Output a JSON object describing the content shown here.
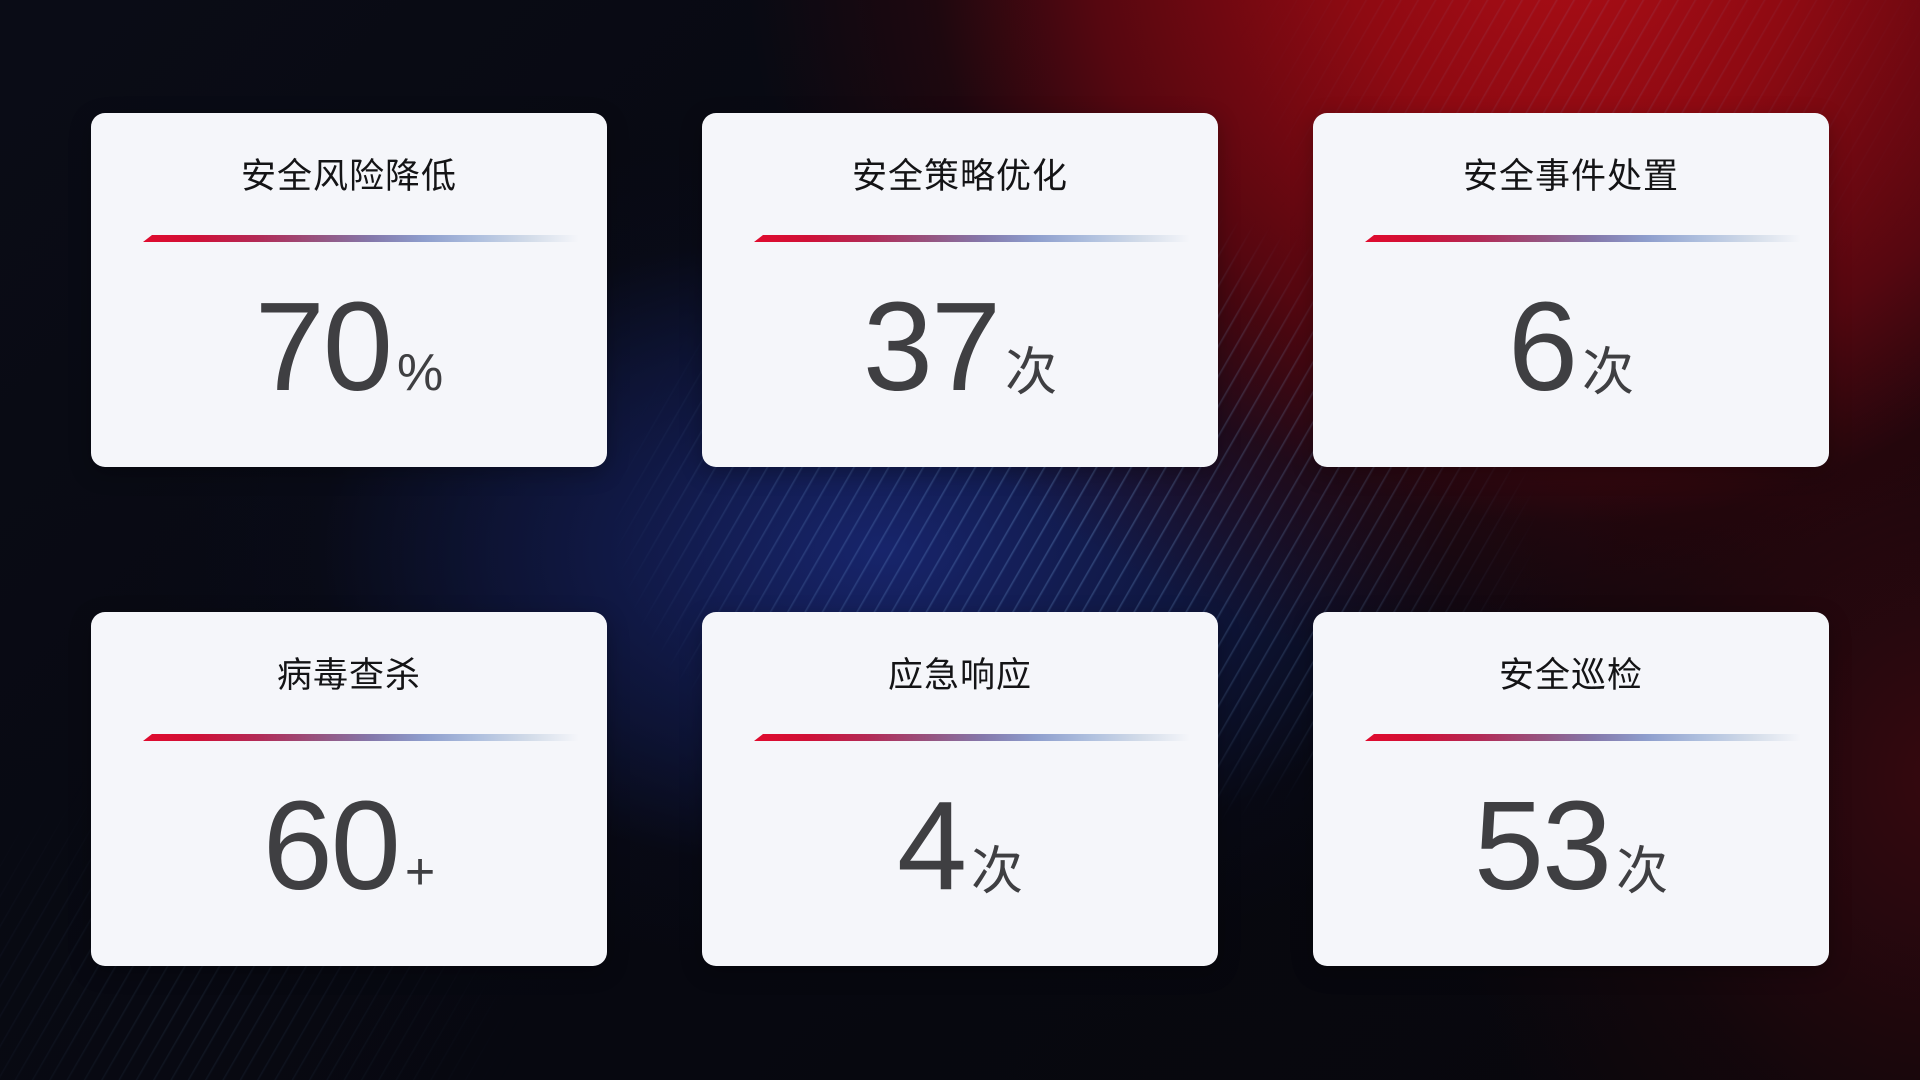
{
  "cards": [
    {
      "title": "安全风险降低",
      "value": "70",
      "unit": "%"
    },
    {
      "title": "安全策略优化",
      "value": "37",
      "unit": "次"
    },
    {
      "title": "安全事件处置",
      "value": "6",
      "unit": "次"
    },
    {
      "title": "病毒查杀",
      "value": "60",
      "unit": "+"
    },
    {
      "title": "应急响应",
      "value": "4",
      "unit": "次"
    },
    {
      "title": "安全巡检",
      "value": "53",
      "unit": "次"
    }
  ],
  "colors": {
    "accent_red": "#dc0a2d",
    "divider_blue": "#aabfdf",
    "card_background": "#f5f6fa",
    "title_text": "#141416",
    "value_text": "#3f3f42",
    "bg_red_glow": "#a50d14",
    "bg_blue_glow": "#18246b",
    "bg_base": "#07070d"
  }
}
